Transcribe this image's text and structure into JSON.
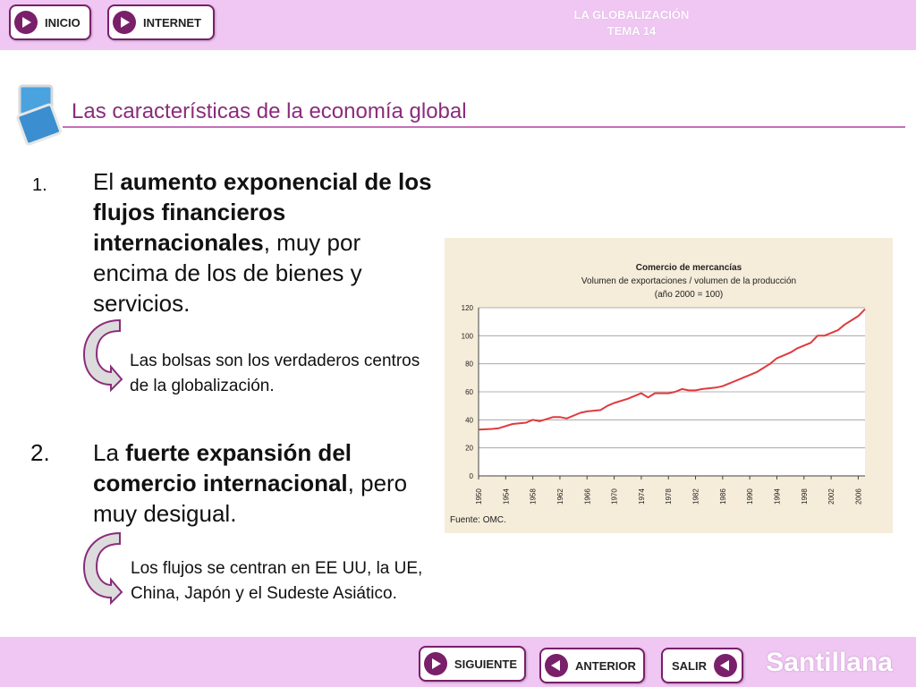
{
  "nav": {
    "inicio": "INICIO",
    "internet": "INTERNET",
    "siguiente": "SIGUIENTE",
    "anterior": "ANTERIOR",
    "salir": "SALIR"
  },
  "header": {
    "topic_line1": "LA GLOBALIZACIÓN",
    "topic_line2": "TEMA 14"
  },
  "page": {
    "title": "Las características de la economía global"
  },
  "points": [
    {
      "num": "1.",
      "pre": "El ",
      "bold": "aumento exponencial de los flujos financieros internacionales",
      "post": ", muy por encima de los de bienes y servicios.",
      "note": "Las bolsas son los  verdaderos centros de la globalización."
    },
    {
      "num": "2.",
      "pre": "La ",
      "bold": "fuerte expansión del comercio internacional",
      "post": ", pero muy desigual.",
      "note": "Los flujos se centran en EE UU, la UE, China, Japón y el Sudeste Asiático."
    }
  ],
  "brand": "Santillana",
  "colors": {
    "bar": "#f0c7f3",
    "accent": "#7a1f6a",
    "title": "#8a2c7b",
    "line": "#e03a3e",
    "chart_bg": "#f5ecd9"
  },
  "chart_data": {
    "type": "line",
    "title": "Comercio de mercancías",
    "subtitle": "Volumen de exportaciones / volumen de la producción",
    "subtitle2": "(año 2000 = 100)",
    "source": "Fuente: OMC.",
    "ylim": [
      0,
      120
    ],
    "y_ticks": [
      0,
      20,
      40,
      60,
      80,
      100,
      120
    ],
    "x_ticks": [
      "1950",
      "1954",
      "1958",
      "1962",
      "1966",
      "1970",
      "1974",
      "1978",
      "1982",
      "1986",
      "1990",
      "1994",
      "1998",
      "2002",
      "2006"
    ],
    "grid": true,
    "x": [
      1950,
      1952,
      1953,
      1955,
      1957,
      1958,
      1959,
      1961,
      1962,
      1963,
      1965,
      1966,
      1968,
      1969,
      1970,
      1972,
      1973,
      1974,
      1975,
      1976,
      1978,
      1979,
      1980,
      1981,
      1982,
      1983,
      1985,
      1986,
      1987,
      1988,
      1989,
      1990,
      1991,
      1992,
      1993,
      1994,
      1995,
      1996,
      1997,
      1998,
      1999,
      2000,
      2001,
      2002,
      2003,
      2004,
      2005,
      2006,
      2007
    ],
    "y": [
      33,
      33.5,
      34,
      37,
      38,
      40,
      39,
      42,
      42,
      41,
      45,
      46,
      47,
      50,
      52,
      55,
      57,
      59,
      56,
      59,
      59,
      60,
      62,
      61,
      61,
      62,
      63,
      64,
      66,
      68,
      70,
      72,
      74,
      77,
      80,
      84,
      86,
      88,
      91,
      93,
      95,
      100,
      100,
      102,
      104,
      108,
      111,
      114,
      119
    ]
  }
}
